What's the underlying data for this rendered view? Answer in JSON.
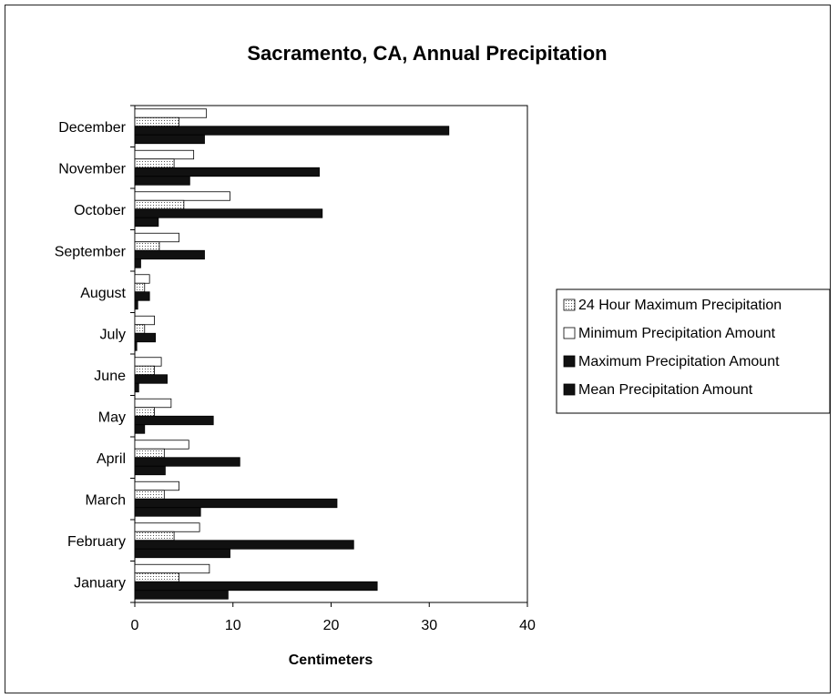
{
  "chart_data": {
    "type": "bar",
    "orientation": "horizontal",
    "title": "Sacramento, CA, Annual Precipitation",
    "xlabel": "Centimeters",
    "ylabel": "",
    "xlim": [
      0,
      40
    ],
    "xticks": [
      0,
      10,
      20,
      30,
      40
    ],
    "grid": false,
    "legend_position": "right",
    "categories": [
      "January",
      "February",
      "March",
      "April",
      "May",
      "June",
      "July",
      "August",
      "September",
      "October",
      "November",
      "December"
    ],
    "series": [
      {
        "name": "24 Hour Maximum Precipitation",
        "color": "#c8c8c8",
        "values": [
          4.5,
          4.0,
          3.0,
          3.0,
          2.0,
          2.0,
          1.0,
          1.0,
          2.5,
          5.0,
          4.0,
          4.5
        ]
      },
      {
        "name": "Minimum Precipitation Amount",
        "color": "#ffffff",
        "values": [
          7.6,
          6.6,
          4.5,
          5.5,
          3.7,
          2.7,
          2.0,
          1.5,
          4.5,
          9.7,
          6.0,
          7.3
        ]
      },
      {
        "name": "Maximum Precipitation Amount",
        "color": "#111111",
        "values": [
          24.7,
          22.3,
          20.6,
          10.7,
          8.0,
          3.3,
          2.1,
          1.5,
          7.1,
          19.1,
          18.8,
          32.0
        ]
      },
      {
        "name": "Mean Precipitation Amount",
        "color": "#111111",
        "values": [
          9.5,
          9.7,
          6.7,
          3.1,
          1.0,
          0.4,
          0.2,
          0.3,
          0.6,
          2.4,
          5.6,
          7.1
        ]
      }
    ]
  }
}
